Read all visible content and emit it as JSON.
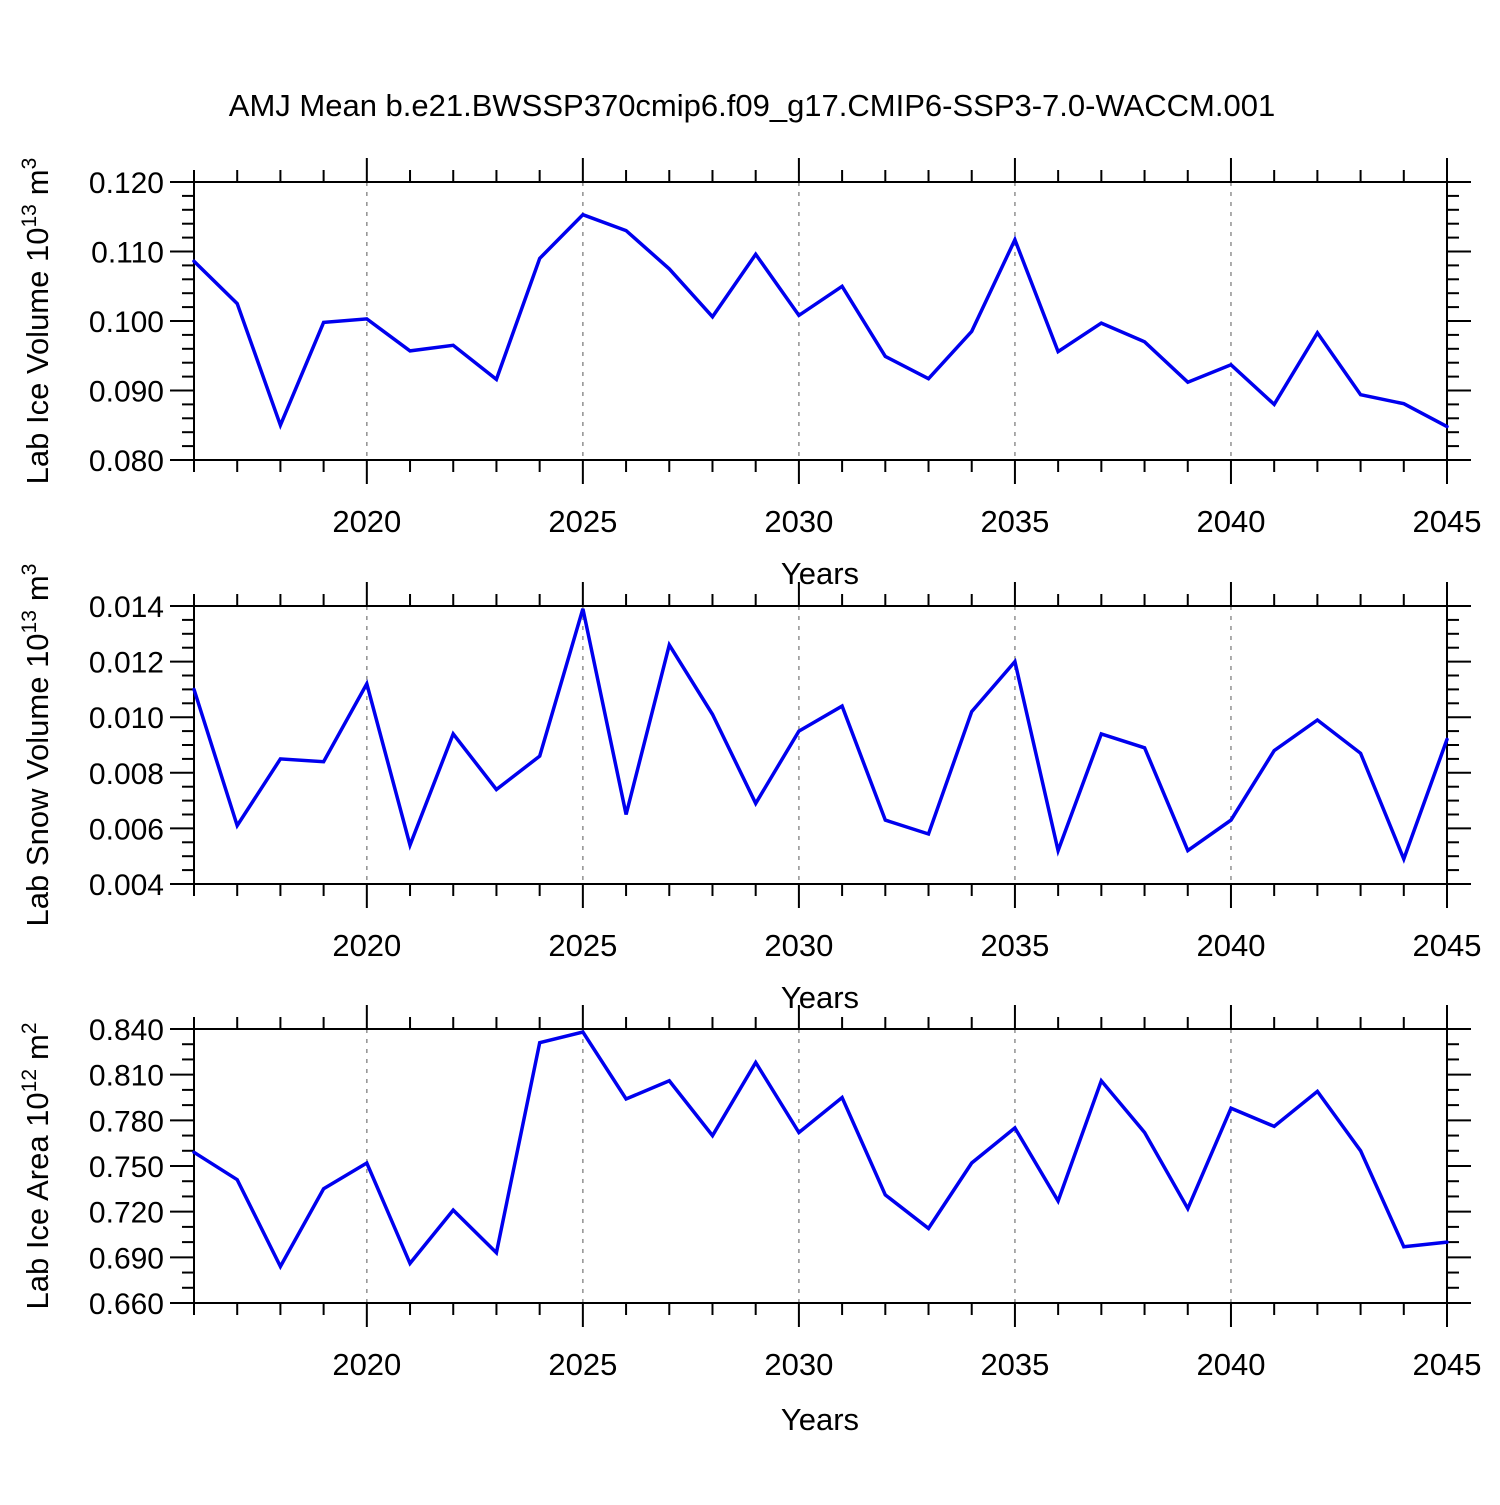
{
  "title": "AMJ Mean b.e21.BWSSP370cmip6.f09_g17.CMIP6-SSP3-7.0-WACCM.001",
  "xlabel": "Years",
  "colors": {
    "line": "#0000EE",
    "axis": "#000000",
    "gridline": "#909090",
    "background": "#FFFFFF",
    "text": "#000000"
  },
  "x_axis": {
    "range": [
      2016,
      2045
    ],
    "minor_step": 1,
    "major_ticks": [
      2020,
      2025,
      2030,
      2035,
      2040,
      2045
    ],
    "major_labels": [
      "2020",
      "2025",
      "2030",
      "2035",
      "2040",
      "2045"
    ],
    "dashed_gridlines": [
      2020,
      2025,
      2030,
      2035,
      2040
    ]
  },
  "chart_data": [
    {
      "type": "line",
      "name": "lab-ice-volume",
      "ylabel": {
        "base": "Lab Ice Volume 10",
        "exp": "13",
        "unit": "m",
        "unit_exp": "3"
      },
      "ylim": [
        0.08,
        0.12
      ],
      "y_tick_values": [
        0.08,
        0.09,
        0.1,
        0.11,
        0.12
      ],
      "y_tick_labels": [
        "0.080",
        "0.090",
        "0.100",
        "0.110",
        "0.120"
      ],
      "y_minor_step": 0.002,
      "x": [
        2016,
        2017,
        2018,
        2019,
        2020,
        2021,
        2022,
        2023,
        2024,
        2025,
        2026,
        2027,
        2028,
        2029,
        2030,
        2031,
        2032,
        2033,
        2034,
        2035,
        2036,
        2037,
        2038,
        2039,
        2040,
        2041,
        2042,
        2043,
        2044,
        2045
      ],
      "values": [
        0.1086,
        0.1025,
        0.085,
        0.0998,
        0.1003,
        0.0957,
        0.0965,
        0.0916,
        0.109,
        0.1153,
        0.113,
        0.1075,
        0.1006,
        0.1096,
        0.1008,
        0.105,
        0.0949,
        0.0917,
        0.0985,
        0.1117,
        0.0956,
        0.0997,
        0.097,
        0.0912,
        0.0937,
        0.088,
        0.0983,
        0.0894,
        0.0881,
        0.0848
      ]
    },
    {
      "type": "line",
      "name": "lab-snow-volume",
      "ylabel": {
        "base": "Lab Snow Volume 10",
        "exp": "13",
        "unit": "m",
        "unit_exp": "3"
      },
      "ylim": [
        0.004,
        0.014
      ],
      "y_tick_values": [
        0.004,
        0.006,
        0.008,
        0.01,
        0.012,
        0.014
      ],
      "y_tick_labels": [
        "0.004",
        "0.006",
        "0.008",
        "0.010",
        "0.012",
        "0.014"
      ],
      "y_minor_step": 0.0005,
      "x": [
        2016,
        2017,
        2018,
        2019,
        2020,
        2021,
        2022,
        2023,
        2024,
        2025,
        2026,
        2027,
        2028,
        2029,
        2030,
        2031,
        2032,
        2033,
        2034,
        2035,
        2036,
        2037,
        2038,
        2039,
        2040,
        2041,
        2042,
        2043,
        2044,
        2045
      ],
      "values": [
        0.011,
        0.0061,
        0.0085,
        0.0084,
        0.0112,
        0.0054,
        0.0094,
        0.0074,
        0.0086,
        0.0139,
        0.0065,
        0.0126,
        0.0101,
        0.0069,
        0.0095,
        0.0104,
        0.0063,
        0.0058,
        0.0102,
        0.012,
        0.0052,
        0.0094,
        0.0089,
        0.0052,
        0.0063,
        0.0088,
        0.0099,
        0.0087,
        0.0049,
        0.0092
      ]
    },
    {
      "type": "line",
      "name": "lab-ice-area",
      "ylabel": {
        "base": "Lab Ice Area 10",
        "exp": "12",
        "unit": "m",
        "unit_exp": "2"
      },
      "ylim": [
        0.66,
        0.84
      ],
      "y_tick_values": [
        0.66,
        0.69,
        0.72,
        0.75,
        0.78,
        0.81,
        0.84
      ],
      "y_tick_labels": [
        "0.660",
        "0.690",
        "0.720",
        "0.750",
        "0.780",
        "0.810",
        "0.840"
      ],
      "y_minor_step": 0.01,
      "x": [
        2016,
        2017,
        2018,
        2019,
        2020,
        2021,
        2022,
        2023,
        2024,
        2025,
        2026,
        2027,
        2028,
        2029,
        2030,
        2031,
        2032,
        2033,
        2034,
        2035,
        2036,
        2037,
        2038,
        2039,
        2040,
        2041,
        2042,
        2043,
        2044,
        2045
      ],
      "values": [
        0.759,
        0.741,
        0.684,
        0.735,
        0.752,
        0.686,
        0.721,
        0.693,
        0.831,
        0.838,
        0.794,
        0.806,
        0.77,
        0.818,
        0.772,
        0.795,
        0.731,
        0.709,
        0.752,
        0.775,
        0.727,
        0.806,
        0.772,
        0.722,
        0.788,
        0.776,
        0.799,
        0.76,
        0.697,
        0.7
      ]
    }
  ]
}
